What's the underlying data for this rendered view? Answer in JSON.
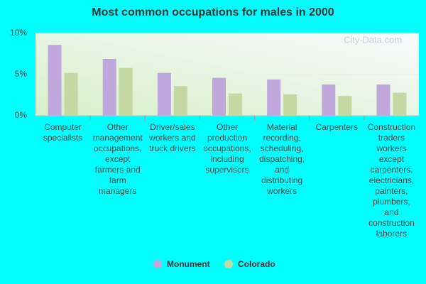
{
  "chart_data": {
    "type": "bar",
    "title": "Most common occupations for males in 2000",
    "watermark": "City-Data.com",
    "categories": [
      "Computer specialists",
      "Other management occupations, except farmers and farm managers",
      "Driver/sales workers and truck drivers",
      "Other production occupations, including supervisors",
      "Material recording, scheduling, dispatching, and distributing workers",
      "Carpenters",
      "Construction traders workers except carpenters, electricians, painters, plumbers, and construction laborers"
    ],
    "series": [
      {
        "name": "Monument",
        "color": "#c0a8dc",
        "values": [
          8.6,
          6.9,
          5.2,
          4.6,
          4.4,
          3.8,
          3.8
        ]
      },
      {
        "name": "Colorado",
        "color": "#c4d8a4",
        "values": [
          5.2,
          5.8,
          3.6,
          2.7,
          2.6,
          2.4,
          2.8
        ]
      }
    ],
    "ylim": [
      0,
      10
    ],
    "yticks": [
      {
        "value": 0,
        "label": "0%"
      },
      {
        "value": 5,
        "label": "5%"
      },
      {
        "value": 10,
        "label": "10%"
      }
    ],
    "grid": true
  }
}
